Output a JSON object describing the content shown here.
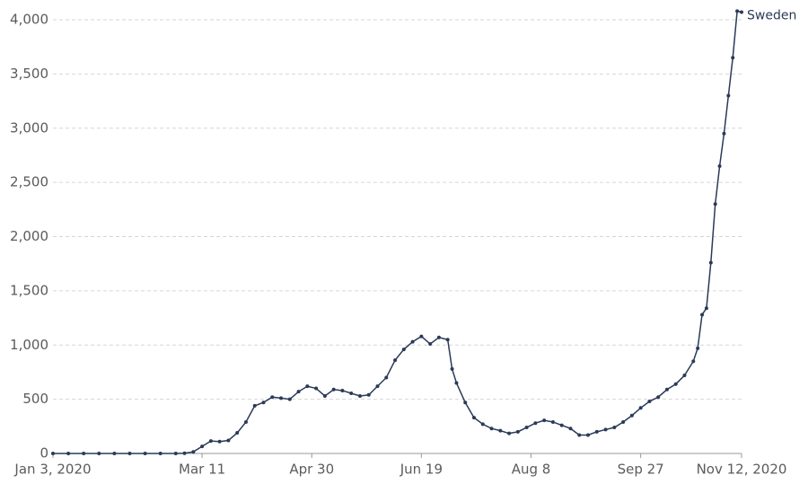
{
  "chart_data": {
    "type": "line",
    "x": [
      "2020-01-03",
      "2020-01-10",
      "2020-01-17",
      "2020-01-24",
      "2020-01-31",
      "2020-02-07",
      "2020-02-14",
      "2020-02-21",
      "2020-02-28",
      "2020-03-03",
      "2020-03-07",
      "2020-03-11",
      "2020-03-15",
      "2020-03-19",
      "2020-03-23",
      "2020-03-27",
      "2020-03-31",
      "2020-04-04",
      "2020-04-08",
      "2020-04-12",
      "2020-04-16",
      "2020-04-20",
      "2020-04-24",
      "2020-04-28",
      "2020-05-02",
      "2020-05-06",
      "2020-05-10",
      "2020-05-14",
      "2020-05-18",
      "2020-05-22",
      "2020-05-26",
      "2020-05-30",
      "2020-06-03",
      "2020-06-07",
      "2020-06-11",
      "2020-06-15",
      "2020-06-19",
      "2020-06-23",
      "2020-06-27",
      "2020-07-01",
      "2020-07-03",
      "2020-07-05",
      "2020-07-09",
      "2020-07-13",
      "2020-07-17",
      "2020-07-21",
      "2020-07-25",
      "2020-07-29",
      "2020-08-02",
      "2020-08-06",
      "2020-08-10",
      "2020-08-14",
      "2020-08-18",
      "2020-08-22",
      "2020-08-26",
      "2020-08-30",
      "2020-09-03",
      "2020-09-07",
      "2020-09-11",
      "2020-09-15",
      "2020-09-19",
      "2020-09-23",
      "2020-09-27",
      "2020-10-01",
      "2020-10-05",
      "2020-10-09",
      "2020-10-13",
      "2020-10-17",
      "2020-10-21",
      "2020-10-23",
      "2020-10-25",
      "2020-10-27",
      "2020-10-29",
      "2020-10-31",
      "2020-11-02",
      "2020-11-04",
      "2020-11-06",
      "2020-11-08",
      "2020-11-10",
      "2020-11-12"
    ],
    "series": [
      {
        "name": "Sweden",
        "color": "#2b3a58",
        "values": [
          0,
          0,
          0,
          0,
          0,
          0,
          0,
          0,
          0,
          2,
          15,
          65,
          115,
          110,
          120,
          190,
          290,
          440,
          470,
          520,
          510,
          500,
          570,
          620,
          600,
          530,
          590,
          580,
          555,
          530,
          540,
          620,
          700,
          860,
          960,
          1030,
          1080,
          1010,
          1070,
          1050,
          780,
          650,
          470,
          330,
          270,
          230,
          210,
          185,
          200,
          240,
          280,
          305,
          290,
          260,
          230,
          170,
          170,
          200,
          220,
          240,
          290,
          350,
          420,
          480,
          520,
          590,
          640,
          720,
          850,
          970,
          1280,
          1340,
          1760,
          2300,
          2650,
          2950,
          3300,
          3650,
          4080,
          4070
        ]
      }
    ],
    "xlim": [
      "2020-01-03",
      "2020-11-12"
    ],
    "xticks": [
      {
        "value": "2020-01-03",
        "label": "Jan 3, 2020"
      },
      {
        "value": "2020-03-11",
        "label": "Mar 11"
      },
      {
        "value": "2020-04-30",
        "label": "Apr 30"
      },
      {
        "value": "2020-06-19",
        "label": "Jun 19"
      },
      {
        "value": "2020-08-08",
        "label": "Aug 8"
      },
      {
        "value": "2020-09-27",
        "label": "Sep 27"
      },
      {
        "value": "2020-11-12",
        "label": "Nov 12, 2020"
      }
    ],
    "ylim": [
      0,
      4000
    ],
    "yticks": [
      0,
      500,
      {
        "value": 1000,
        "label": "1,000"
      },
      {
        "value": 1500,
        "label": "1,500"
      },
      {
        "value": 2000,
        "label": "2,000"
      },
      {
        "value": 2500,
        "label": "2,500"
      },
      {
        "value": 3000,
        "label": "3,000"
      },
      {
        "value": 3500,
        "label": "3,500"
      },
      {
        "value": 4000,
        "label": "4,000"
      }
    ],
    "grid": true
  }
}
